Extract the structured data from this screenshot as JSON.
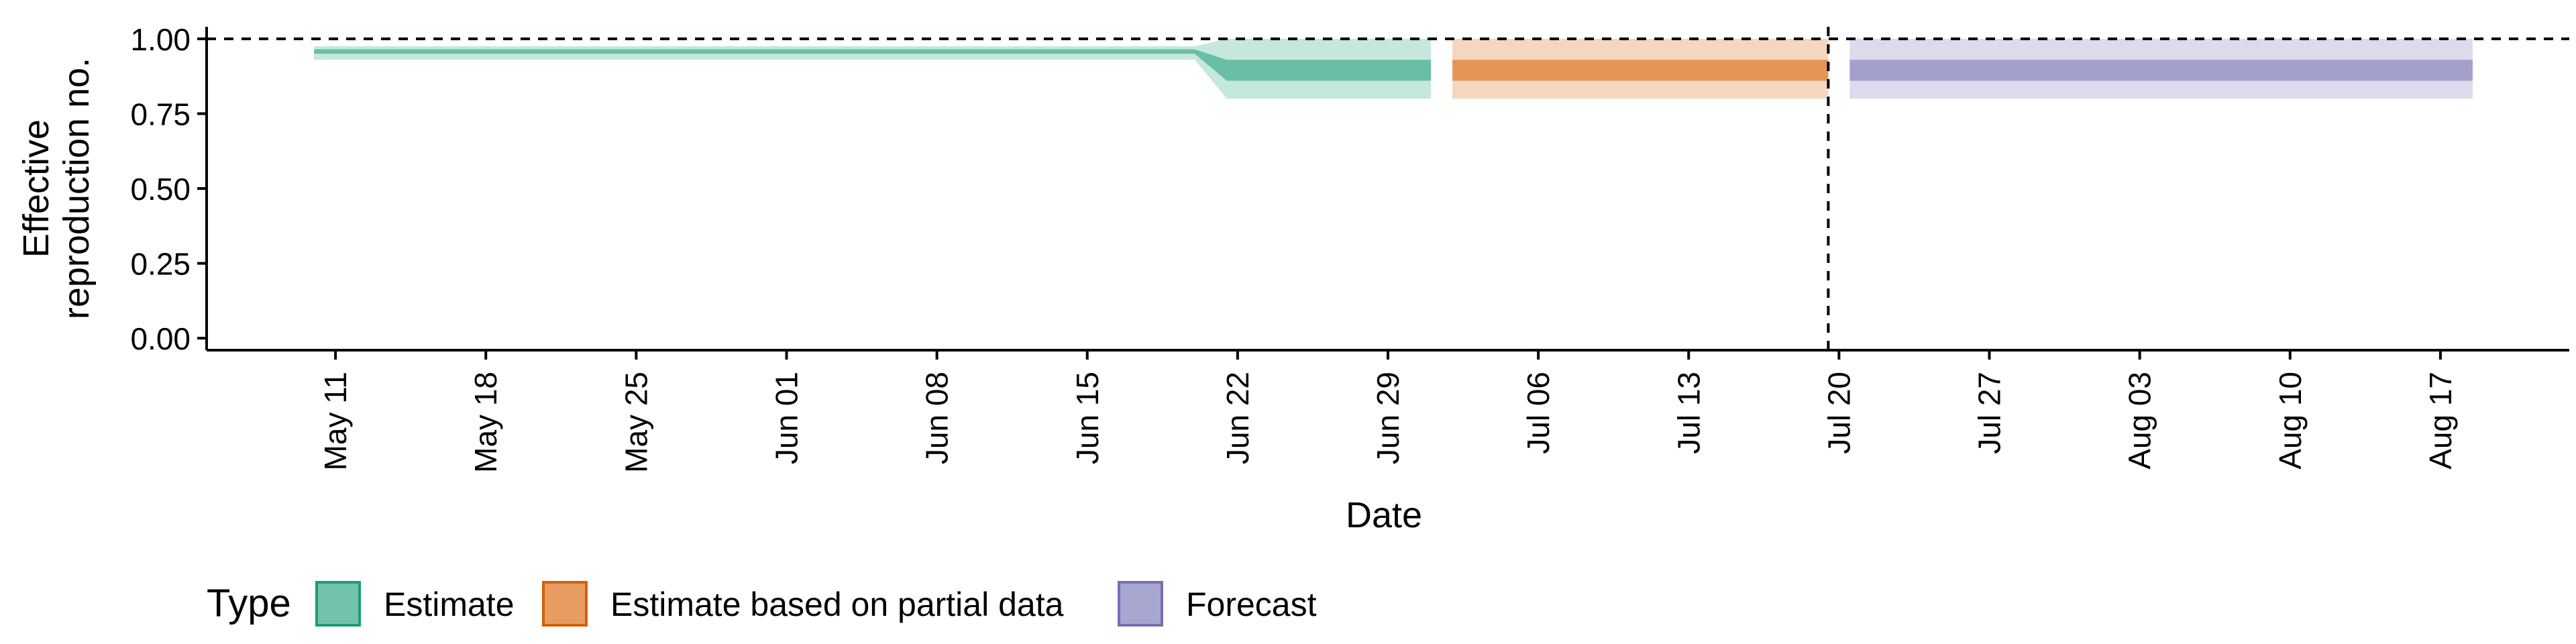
{
  "chart_data": {
    "type": "area",
    "title": "",
    "xlabel": "Date",
    "ylabel": [
      "Effective",
      "reproduction no."
    ],
    "ylim": [
      -0.04,
      1.04
    ],
    "y_ticks": [
      0.0,
      0.25,
      0.5,
      0.75,
      1.0
    ],
    "y_tick_labels": [
      "0.00",
      "0.25",
      "0.50",
      "0.75",
      "1.00"
    ],
    "x_range_days": [
      -6.0,
      104.0
    ],
    "x_ticks_days": [
      0,
      7,
      14,
      21,
      28,
      35,
      42,
      49,
      56,
      63,
      70,
      77,
      84,
      91,
      98
    ],
    "x_tick_labels": [
      "May 11",
      "May 18",
      "May 25",
      "Jun 01",
      "Jun 08",
      "Jun 15",
      "Jun 22",
      "Jun 29",
      "Jul 06",
      "Jul 13",
      "Jul 20",
      "Jul 27",
      "Aug 03",
      "Aug 10",
      "Aug 17"
    ],
    "x_origin_date": "May 11",
    "reference_hline_y": 1.0,
    "reference_vline_day": 69.5,
    "legend": {
      "title": "Type",
      "position": "bottom",
      "entries": [
        "Estimate",
        "Estimate based on partial data",
        "Forecast"
      ]
    },
    "series": [
      {
        "name": "Estimate",
        "color": "#1b9e77",
        "points": [
          {
            "day": -1.0,
            "lo90": 0.93,
            "lo50": 0.95,
            "hi50": 0.965,
            "hi90": 0.975
          },
          {
            "day": 40.0,
            "lo90": 0.93,
            "lo50": 0.95,
            "hi50": 0.965,
            "hi90": 0.975
          },
          {
            "day": 41.5,
            "lo90": 0.8,
            "lo50": 0.86,
            "hi50": 0.93,
            "hi90": 1.0
          },
          {
            "day": 51.0,
            "lo90": 0.8,
            "lo50": 0.86,
            "hi50": 0.93,
            "hi90": 1.0
          }
        ]
      },
      {
        "name": "Estimate based on partial data",
        "color": "#d95f02",
        "points": [
          {
            "day": 52.0,
            "lo90": 0.8,
            "lo50": 0.86,
            "hi50": 0.93,
            "hi90": 1.0
          },
          {
            "day": 69.5,
            "lo90": 0.8,
            "lo50": 0.86,
            "hi50": 0.93,
            "hi90": 1.0
          }
        ]
      },
      {
        "name": "Forecast",
        "color": "#7570b3",
        "points": [
          {
            "day": 70.5,
            "lo90": 0.8,
            "lo50": 0.86,
            "hi50": 0.93,
            "hi90": 1.0
          },
          {
            "day": 99.5,
            "lo90": 0.8,
            "lo50": 0.86,
            "hi50": 0.93,
            "hi90": 1.0
          }
        ]
      }
    ]
  }
}
